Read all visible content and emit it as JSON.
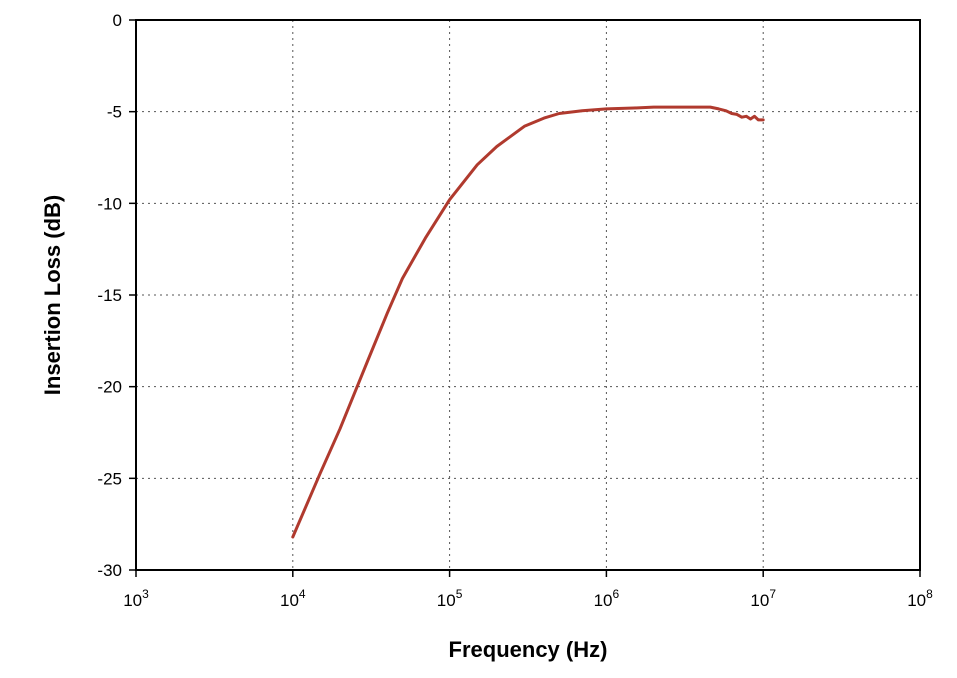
{
  "chart_data": {
    "type": "line",
    "title": "",
    "xlabel": "Frequency (Hz)",
    "ylabel": "Insertion Loss (dB)",
    "x_scale": "log",
    "xlim": [
      1000,
      100000000
    ],
    "ylim": [
      -30,
      0
    ],
    "grid": true,
    "x_ticks": [
      {
        "base": "10",
        "exp": "3",
        "value": 1000
      },
      {
        "base": "10",
        "exp": "4",
        "value": 10000
      },
      {
        "base": "10",
        "exp": "5",
        "value": 100000
      },
      {
        "base": "10",
        "exp": "6",
        "value": 1000000
      },
      {
        "base": "10",
        "exp": "7",
        "value": 10000000
      },
      {
        "base": "10",
        "exp": "8",
        "value": 100000000
      }
    ],
    "y_ticks": [
      {
        "label": "0",
        "value": 0
      },
      {
        "label": "-5",
        "value": -5
      },
      {
        "label": "-10",
        "value": -10
      },
      {
        "label": "-15",
        "value": -15
      },
      {
        "label": "-20",
        "value": -20
      },
      {
        "label": "-25",
        "value": -25
      },
      {
        "label": "-30",
        "value": -30
      }
    ],
    "series": [
      {
        "color": "#b03a2e",
        "x": [
          10000,
          15000,
          20000,
          30000,
          40000,
          50000,
          70000,
          100000,
          150000,
          200000,
          300000,
          400000,
          500000,
          700000,
          1000000,
          1500000,
          2000000,
          3000000,
          4000000,
          4600000,
          5200000,
          5800000,
          6300000,
          6800000,
          7300000,
          7800000,
          8300000,
          8800000,
          9300000,
          10000000
        ],
        "y": [
          -28.2,
          -24.7,
          -22.3,
          -18.6,
          -16.0,
          -14.1,
          -11.9,
          -9.8,
          -7.9,
          -6.9,
          -5.8,
          -5.35,
          -5.1,
          -4.95,
          -4.85,
          -4.8,
          -4.75,
          -4.75,
          -4.75,
          -4.75,
          -4.85,
          -4.95,
          -5.1,
          -5.15,
          -5.3,
          -5.25,
          -5.4,
          -5.25,
          -5.45,
          -5.45
        ]
      }
    ]
  }
}
